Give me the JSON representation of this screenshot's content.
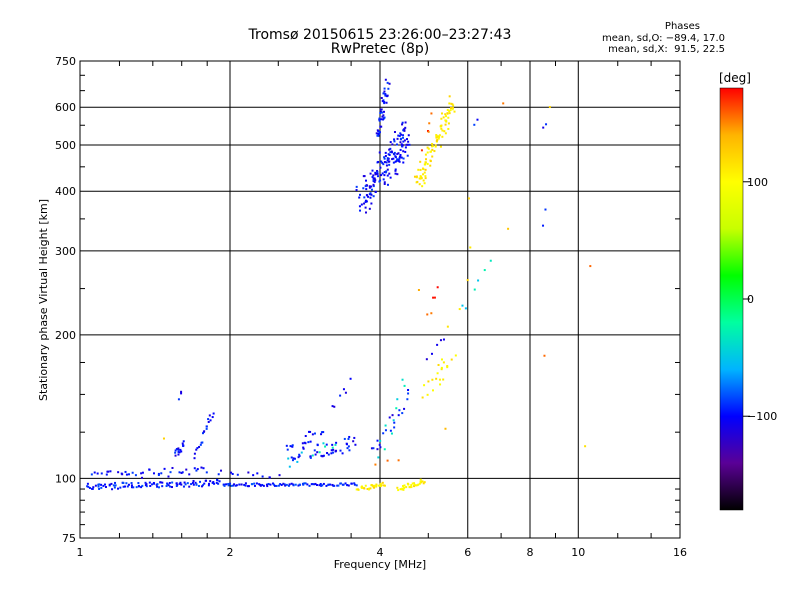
{
  "header": {
    "title": "Tromsø 20150615 23:26:00–23:27:43",
    "subtitle": "RwPretec (8p)",
    "phases_title": "Phases",
    "phases_o": "mean, sd,O: −89.4, 17.0",
    "phases_x": "mean, sd,X:  91.5, 22.5"
  },
  "chart_data": {
    "type": "scatter",
    "xlabel": "Frequency [MHz]",
    "ylabel": "Stationary phase Virtual Height [km]",
    "x_scale": "log",
    "y_scale": "log",
    "xlim": [
      1,
      16
    ],
    "ylim": [
      75,
      750
    ],
    "x_ticks": [
      1,
      2,
      4,
      6,
      8,
      10,
      16
    ],
    "x_tick_labels": [
      "1",
      "2",
      "4",
      "6",
      "8",
      "10",
      "16"
    ],
    "y_ticks": [
      75,
      100,
      200,
      300,
      400,
      500,
      600,
      750
    ],
    "y_tick_labels": [
      "75",
      "100",
      "200",
      "300",
      "400",
      "500",
      "600",
      "750"
    ],
    "grid": true,
    "colorbar": {
      "label": "[deg]",
      "range": [
        -180,
        180
      ],
      "ticks": [
        100,
        0,
        -100
      ],
      "tick_labels": [
        "100",
        "0",
        "−100"
      ],
      "colormap": [
        "#000000",
        "#5a0096",
        "#0000ff",
        "#00b4ff",
        "#00ffa0",
        "#00ff00",
        "#c8ff00",
        "#ffff00",
        "#ffb400",
        "#ff0000"
      ]
    },
    "series": [
      {
        "phase": -95,
        "tracks": [
          {
            "x0": 1.03,
            "x1": 1.95,
            "y0": 96,
            "y1": 98,
            "n": 110,
            "jx": 0.01,
            "jy": 0.015
          },
          {
            "x0": 1.95,
            "x1": 3.6,
            "y0": 97,
            "y1": 97,
            "n": 90,
            "jx": 0.005,
            "jy": 0.007
          }
        ]
      },
      {
        "phase": -100,
        "tracks": [
          {
            "x0": 1.05,
            "x1": 1.8,
            "y0": 101,
            "y1": 104,
            "n": 40,
            "jx": 0.02,
            "jy": 0.02
          },
          {
            "x0": 1.55,
            "x1": 1.62,
            "y0": 112,
            "y1": 118,
            "n": 16,
            "jx": 0.005,
            "jy": 0.02
          },
          {
            "x0": 1.58,
            "x1": 1.6,
            "y0": 147,
            "y1": 152,
            "n": 3,
            "jx": 0.004,
            "jy": 0.01
          },
          {
            "x0": 1.7,
            "x1": 1.85,
            "y0": 112,
            "y1": 138,
            "n": 20,
            "jx": 0.006,
            "jy": 0.02
          },
          {
            "x0": 1.9,
            "x1": 2.5,
            "y0": 103,
            "y1": 101,
            "n": 12,
            "jx": 0.02,
            "jy": 0.01
          },
          {
            "x0": 2.6,
            "x1": 3.55,
            "y0": 113,
            "y1": 118,
            "n": 55,
            "jx": 0.02,
            "jy": 0.04
          },
          {
            "x0": 2.85,
            "x1": 3.1,
            "y0": 123,
            "y1": 123,
            "n": 8,
            "jx": 0.01,
            "jy": 0.02
          },
          {
            "x0": 3.2,
            "x1": 3.5,
            "y0": 140,
            "y1": 160,
            "n": 6,
            "jx": 0.01,
            "jy": 0.04
          },
          {
            "x0": 3.85,
            "x1": 4.6,
            "y0": 115,
            "y1": 150,
            "n": 20,
            "jx": 0.01,
            "jy": 0.05
          },
          {
            "x0": 3.65,
            "x1": 4.55,
            "y0": 380,
            "y1": 520,
            "n": 150,
            "jx": 0.03,
            "jy": 0.07
          },
          {
            "x0": 3.95,
            "x1": 4.15,
            "y0": 520,
            "y1": 670,
            "n": 45,
            "jx": 0.01,
            "jy": 0.04
          },
          {
            "x0": 4.3,
            "x1": 4.5,
            "y0": 430,
            "y1": 560,
            "n": 20,
            "jx": 0.01,
            "jy": 0.05
          },
          {
            "x0": 5.0,
            "x1": 5.4,
            "y0": 180,
            "y1": 195,
            "n": 5,
            "jx": 0.01,
            "jy": 0.02
          },
          {
            "x0": 6.2,
            "x1": 6.3,
            "y0": 555,
            "y1": 560,
            "n": 2,
            "jx": 0.005,
            "jy": 0.01
          },
          {
            "x0": 8.5,
            "x1": 8.6,
            "y0": 540,
            "y1": 555,
            "n": 2,
            "jx": 0.005,
            "jy": 0.01
          },
          {
            "x0": 8.5,
            "x1": 8.6,
            "y0": 340,
            "y1": 365,
            "n": 2,
            "jx": 0.005,
            "jy": 0.01
          }
        ]
      },
      {
        "phase": -40,
        "tracks": [
          {
            "x0": 2.6,
            "x1": 3.3,
            "y0": 108,
            "y1": 120,
            "n": 10,
            "jx": 0.02,
            "jy": 0.03
          },
          {
            "x0": 3.95,
            "x1": 4.5,
            "y0": 110,
            "y1": 160,
            "n": 10,
            "jx": 0.01,
            "jy": 0.05
          },
          {
            "x0": 5.8,
            "x1": 6.7,
            "y0": 225,
            "y1": 280,
            "n": 6,
            "jx": 0.01,
            "jy": 0.04
          }
        ]
      },
      {
        "phase": 110,
        "tracks": [
          {
            "x0": 3.6,
            "x1": 4.1,
            "y0": 95,
            "y1": 97,
            "n": 30,
            "jx": 0.008,
            "jy": 0.01
          },
          {
            "x0": 4.35,
            "x1": 4.9,
            "y0": 95,
            "y1": 99,
            "n": 30,
            "jx": 0.008,
            "jy": 0.012
          },
          {
            "x0": 4.75,
            "x1": 5.6,
            "y0": 410,
            "y1": 610,
            "n": 95,
            "jx": 0.02,
            "jy": 0.05
          },
          {
            "x0": 4.9,
            "x1": 5.6,
            "y0": 150,
            "y1": 180,
            "n": 18,
            "jx": 0.02,
            "jy": 0.03
          },
          {
            "x0": 5.2,
            "x1": 6.1,
            "y0": 160,
            "y1": 300,
            "n": 6,
            "jx": 0.02,
            "jy": 0.04
          }
        ]
      },
      {
        "phase": 165,
        "tracks": [
          {
            "x0": 5.0,
            "x1": 5.2,
            "y0": 215,
            "y1": 258,
            "n": 5,
            "jx": 0.005,
            "jy": 0.03
          },
          {
            "x0": 4.9,
            "x1": 5.1,
            "y0": 500,
            "y1": 600,
            "n": 5,
            "jx": 0.01,
            "jy": 0.04
          },
          {
            "x0": 7.0,
            "x1": 7.1,
            "y0": 608,
            "y1": 612,
            "n": 1,
            "jx": 0.003,
            "jy": 0.005
          },
          {
            "x0": 10.5,
            "x1": 10.6,
            "y0": 275,
            "y1": 280,
            "n": 1,
            "jx": 0.003,
            "jy": 0.005
          },
          {
            "x0": 8.55,
            "x1": 8.6,
            "y0": 180,
            "y1": 183,
            "n": 1,
            "jx": 0.003,
            "jy": 0.005
          },
          {
            "x0": 3.9,
            "x1": 4.4,
            "y0": 105,
            "y1": 110,
            "n": 3,
            "jx": 0.01,
            "jy": 0.02
          }
        ]
      },
      {
        "phase": 130,
        "tracks": [
          {
            "x0": 1.45,
            "x1": 1.5,
            "y0": 120,
            "y1": 122,
            "n": 1,
            "jx": 0.003,
            "jy": 0.005
          },
          {
            "x0": 4.7,
            "x1": 4.9,
            "y0": 245,
            "y1": 250,
            "n": 1,
            "jx": 0.003,
            "jy": 0.005
          },
          {
            "x0": 7.2,
            "x1": 7.3,
            "y0": 330,
            "y1": 335,
            "n": 1,
            "jx": 0.003,
            "jy": 0.005
          },
          {
            "x0": 6.0,
            "x1": 6.1,
            "y0": 385,
            "y1": 390,
            "n": 1,
            "jx": 0.003,
            "jy": 0.005
          },
          {
            "x0": 8.7,
            "x1": 8.8,
            "y0": 598,
            "y1": 602,
            "n": 1,
            "jx": 0.003,
            "jy": 0.005
          },
          {
            "x0": 10.3,
            "x1": 10.4,
            "y0": 116,
            "y1": 118,
            "n": 1,
            "jx": 0.003,
            "jy": 0.005
          },
          {
            "x0": 5.3,
            "x1": 5.5,
            "y0": 125,
            "y1": 130,
            "n": 1,
            "jx": 0.003,
            "jy": 0.005
          }
        ]
      }
    ]
  }
}
